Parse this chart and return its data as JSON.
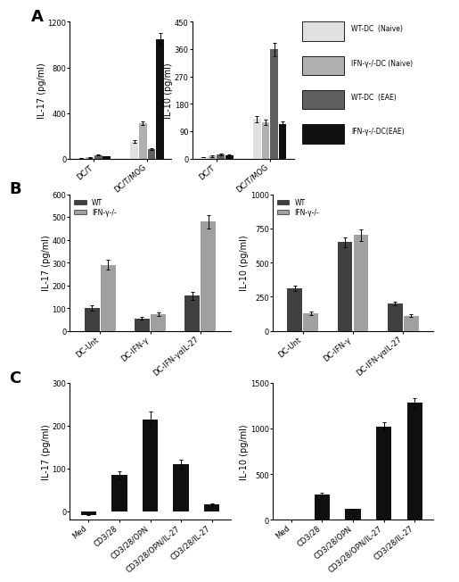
{
  "panel_A_left": {
    "ylabel": "IL-17 (pg/ml)",
    "categories": [
      "DC/T",
      "DC/T/MOG"
    ],
    "series": [
      {
        "label": "WT-DC (Naive)",
        "color": "#e0e0e0",
        "values": [
          5,
          150
        ],
        "errors": [
          1,
          12
        ]
      },
      {
        "label": "IFN-γ-/-DC (Naive)",
        "color": "#b0b0b0",
        "values": [
          10,
          310
        ],
        "errors": [
          2,
          18
        ]
      },
      {
        "label": "WT-DC (EAE)",
        "color": "#606060",
        "values": [
          30,
          80
        ],
        "errors": [
          4,
          8
        ]
      },
      {
        "label": "IFN-γ-/-DC(EAE)",
        "color": "#101010",
        "values": [
          20,
          1050
        ],
        "errors": [
          3,
          55
        ]
      }
    ],
    "ylim": [
      0,
      1200
    ],
    "yticks": [
      0,
      400,
      800,
      1200
    ]
  },
  "panel_A_right": {
    "ylabel": "IL-10 (pg/ml)",
    "categories": [
      "DC/T",
      "DC/T/MOG"
    ],
    "series": [
      {
        "label": "WT-DC (Naive)",
        "color": "#e0e0e0",
        "values": [
          5,
          130
        ],
        "errors": [
          1,
          10
        ]
      },
      {
        "label": "IFN-γ-/-DC (Naive)",
        "color": "#b0b0b0",
        "values": [
          8,
          120
        ],
        "errors": [
          2,
          8
        ]
      },
      {
        "label": "WT-DC (EAE)",
        "color": "#606060",
        "values": [
          15,
          360
        ],
        "errors": [
          3,
          22
        ]
      },
      {
        "label": "IFN-γ-/-DC(EAE)",
        "color": "#101010",
        "values": [
          12,
          115
        ],
        "errors": [
          2,
          8
        ]
      }
    ],
    "ylim": [
      0,
      450
    ],
    "yticks": [
      0,
      90,
      180,
      270,
      360,
      450
    ]
  },
  "legend_A": [
    {
      "label": "WT-DC  (Naive)",
      "color": "#e0e0e0"
    },
    {
      "label": "IFN-γ-/-DC (Naive)",
      "color": "#b0b0b0"
    },
    {
      "label": "WT-DC  (EAE)",
      "color": "#606060"
    },
    {
      "label": "IFN-γ-/-DC(EAE)",
      "color": "#101010"
    }
  ],
  "panel_B_left": {
    "ylabel": "IL-17 (pg/ml)",
    "categories": [
      "DC-Unt",
      "DC-IFN-γ",
      "DC-IFN-γαIL-27"
    ],
    "series": [
      {
        "label": "WT",
        "color": "#404040",
        "values": [
          100,
          55,
          155
        ],
        "errors": [
          12,
          6,
          18
        ]
      },
      {
        "label": "IFN-γ-/-",
        "color": "#a0a0a0",
        "values": [
          290,
          75,
          480
        ],
        "errors": [
          22,
          8,
          30
        ]
      }
    ],
    "ylim": [
      0,
      600
    ],
    "yticks": [
      0,
      100,
      200,
      300,
      400,
      500,
      600
    ]
  },
  "panel_B_right": {
    "ylabel": "IL-10 (pg/ml)",
    "categories": [
      "DC-Unt",
      "DC-IFN-γ",
      "DC-IFN-γαIL-27"
    ],
    "series": [
      {
        "label": "WT",
        "color": "#404040",
        "values": [
          310,
          650,
          200
        ],
        "errors": [
          18,
          35,
          12
        ]
      },
      {
        "label": "IFN-γ-/-",
        "color": "#a0a0a0",
        "values": [
          130,
          700,
          110
        ],
        "errors": [
          12,
          40,
          10
        ]
      }
    ],
    "ylim": [
      0,
      1000
    ],
    "yticks": [
      0,
      250,
      500,
      750,
      1000
    ]
  },
  "panel_C_left": {
    "ylabel": "IL-17 (pg/ml)",
    "categories": [
      "Med",
      "CD3/28",
      "CD3/28/OPN",
      "CD3/28/OPN/IL-27",
      "CD3/28/IL-27"
    ],
    "values": [
      -8,
      85,
      215,
      110,
      15
    ],
    "errors": [
      1,
      8,
      18,
      10,
      3
    ],
    "color": "#101010",
    "ylim": [
      -20,
      300
    ],
    "yticks": [
      0,
      100,
      200,
      300
    ]
  },
  "panel_C_right": {
    "ylabel": "IL-10 (pg/ml)",
    "categories": [
      "Med",
      "CD3/28",
      "CD3/28/OPN",
      "CD3/28/OPN/IL-27",
      "CD3/28/IL-27"
    ],
    "values": [
      5,
      280,
      115,
      1020,
      1280
    ],
    "errors": [
      1,
      18,
      8,
      45,
      55
    ],
    "color": "#101010",
    "ylim": [
      0,
      1500
    ],
    "yticks": [
      0,
      500,
      1000,
      1500
    ]
  },
  "background_color": "#ffffff",
  "fontsize": 7,
  "tick_fontsize": 6,
  "label_fontsize": 13
}
